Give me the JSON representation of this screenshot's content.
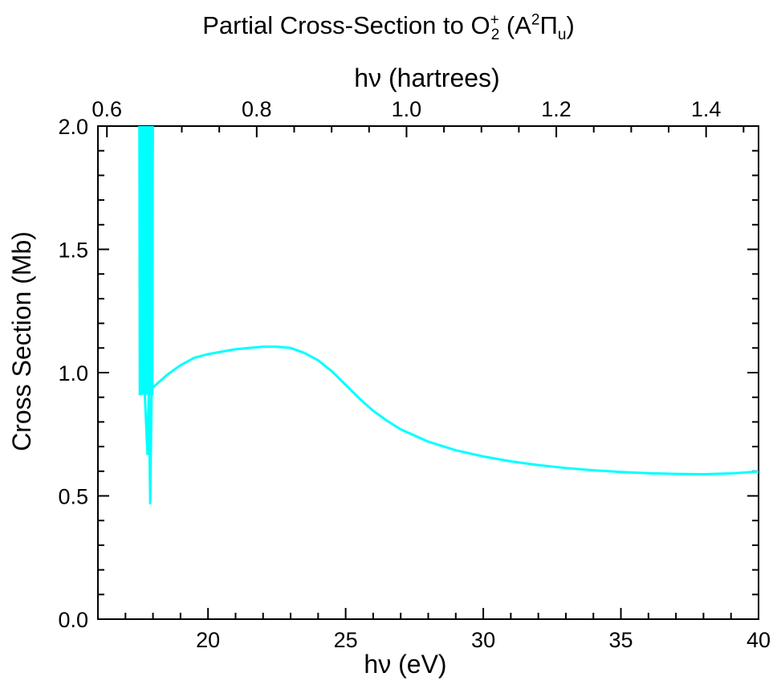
{
  "title": {
    "prefix": "Partial Cross-Section to O",
    "sup1": "+",
    "sub1": "2",
    "paren_open": " (A",
    "sup2": "2",
    "pi": "Π",
    "sub2": "u",
    "paren_close": ")"
  },
  "chart_data": {
    "type": "line",
    "xlabel": "hν (eV)",
    "x2label": "hν (hartrees)",
    "ylabel": "Cross Section (Mb)",
    "xlim": [
      16,
      40
    ],
    "x2lim": [
      0.588,
      1.47
    ],
    "ylim": [
      0,
      2
    ],
    "x_ticks": [
      20,
      25,
      30,
      35,
      40
    ],
    "x_tick_labels": [
      "20",
      "25",
      "30",
      "35",
      "40"
    ],
    "x2_ticks": [
      0.6,
      0.8,
      1.0,
      1.2,
      1.4
    ],
    "x2_tick_labels": [
      "0.6",
      "0.8",
      "1.0",
      "1.2",
      "1.4"
    ],
    "y_ticks": [
      0.0,
      0.5,
      1.0,
      1.5,
      2.0
    ],
    "y_tick_labels": [
      "0.0",
      "0.5",
      "1.0",
      "1.5",
      "2.0"
    ],
    "grid": false,
    "series": [
      {
        "color": "#00ffff",
        "resonance_band": {
          "x_start": 17.5,
          "x_end": 18.0,
          "y_low": 0.91,
          "y_high": 2.0
        },
        "x": [
          17.5,
          17.6,
          17.7,
          17.8,
          17.85,
          17.9,
          17.95,
          18.0,
          18.1,
          18.5,
          19.0,
          19.5,
          20.0,
          20.5,
          21.0,
          21.5,
          22.0,
          22.5,
          23.0,
          23.5,
          24.0,
          24.5,
          25.0,
          25.5,
          26.0,
          26.5,
          27.0,
          28.0,
          29.0,
          30.0,
          31.0,
          32.0,
          33.0,
          34.0,
          35.0,
          36.0,
          37.0,
          38.0,
          39.0,
          40.0
        ],
        "y": [
          0.91,
          0.92,
          0.92,
          0.67,
          0.93,
          0.47,
          0.94,
          0.94,
          0.95,
          0.99,
          1.03,
          1.06,
          1.075,
          1.085,
          1.095,
          1.1,
          1.105,
          1.105,
          1.1,
          1.08,
          1.05,
          1.005,
          0.95,
          0.895,
          0.845,
          0.805,
          0.77,
          0.72,
          0.685,
          0.66,
          0.64,
          0.625,
          0.613,
          0.604,
          0.597,
          0.592,
          0.589,
          0.588,
          0.591,
          0.599
        ]
      }
    ]
  }
}
